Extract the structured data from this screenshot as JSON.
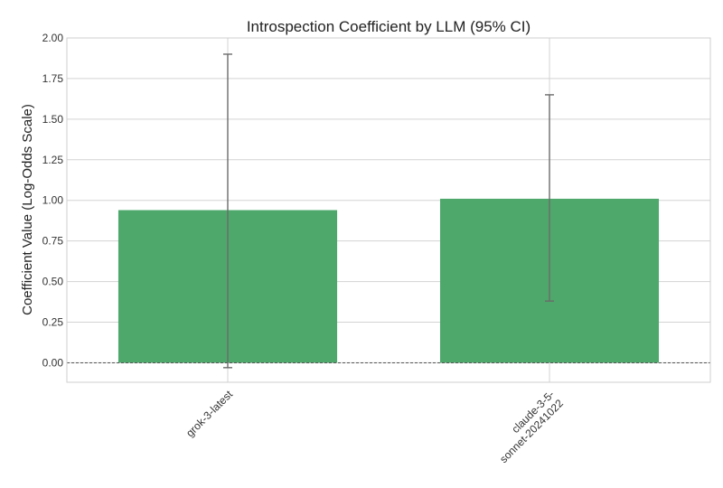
{
  "colors": {
    "bar": "#4ea86b",
    "grid": "#d3d3d3",
    "frame": "#cfcfcf",
    "errorbar": "#6b6b6b",
    "zero_line": "#444444"
  },
  "chart_data": {
    "type": "bar",
    "title": "Introspection Coefficient by LLM (95% CI)",
    "xlabel": "",
    "ylabel": "Coefficient Value (Log-Odds Scale)",
    "categories": [
      "grok-3-latest",
      "claude-3-5-sonnet-20241022"
    ],
    "category_tick_lines": [
      [
        "grok-3-latest"
      ],
      [
        "claude-3-5-",
        "sonnet-20241022"
      ]
    ],
    "values": [
      0.94,
      1.01
    ],
    "ci_lower": [
      -0.03,
      0.38
    ],
    "ci_upper": [
      1.9,
      1.65
    ],
    "ylim": [
      -0.12,
      2.0
    ],
    "yticks": [
      0.0,
      0.25,
      0.5,
      0.75,
      1.0,
      1.25,
      1.5,
      1.75,
      2.0
    ],
    "ytick_labels": [
      "0.00",
      "0.25",
      "0.50",
      "0.75",
      "1.00",
      "1.25",
      "1.50",
      "1.75",
      "2.00"
    ],
    "grid": true,
    "reference_line": 0
  }
}
